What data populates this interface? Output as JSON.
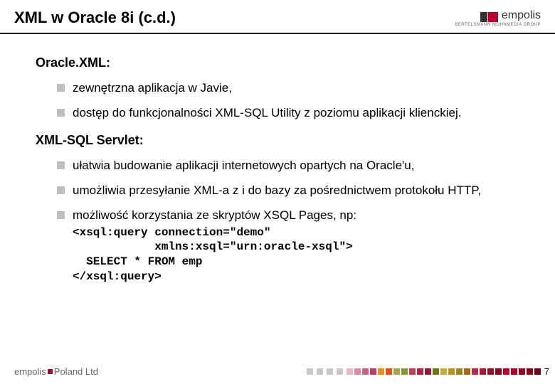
{
  "header": {
    "title": "XML w Oracle 8i (c.d.)",
    "logo": {
      "text": "empolis",
      "subtitle": "BERTELSMANN MOHNMEDIA GROUP"
    }
  },
  "sections": [
    {
      "heading": "Oracle.XML:",
      "items": [
        {
          "text": "zewnętrzna aplikacja w Javie,"
        },
        {
          "text": "dostęp do funkcjonalności XML-SQL Utility z poziomu aplikacji klienckiej."
        }
      ]
    },
    {
      "heading": "XML-SQL Servlet:",
      "items": [
        {
          "text": "ułatwia budowanie aplikacji internetowych opartych na Oracle'u,"
        },
        {
          "text": "umożliwia przesyłanie XML-a z i do bazy za pośrednictwem protokołu HTTP,"
        },
        {
          "text": "możliwość korzystania ze skryptów XSQL Pages, np:",
          "code": "<xsql:query connection=\"demo\"\n            xmlns:xsql=\"urn:oracle-xsql\">\n  SELECT * FROM emp\n</xsql:query>"
        }
      ]
    }
  ],
  "footer": {
    "brand": "empolis",
    "suffix": "Poland Ltd",
    "squares": [
      "#c8c8c8",
      "#c8c8c8",
      "#c8c8c8",
      "#c8c8c8",
      "#e8b8c8",
      "#d88ba8",
      "#c86088",
      "#b8406c",
      "#e69020",
      "#d8541c",
      "#a8a848",
      "#889838",
      "#c04058",
      "#a82848",
      "#901838",
      "#6a7818",
      "#c8a838",
      "#b89428",
      "#a88020",
      "#986c18",
      "#b82848",
      "#a81838",
      "#981028",
      "#880820",
      "#b8002e",
      "#a80028",
      "#980022",
      "#88001c",
      "#780016"
    ]
  },
  "pageNumber": "7"
}
